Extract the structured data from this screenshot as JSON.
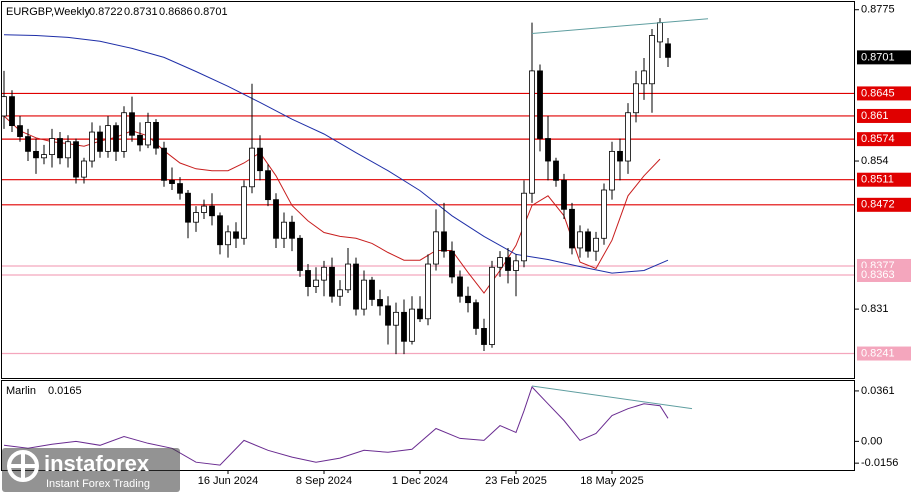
{
  "chart_data": {
    "type": "candlestick",
    "title": "EURGBP,Weekly",
    "categories": [
      null,
      null,
      null,
      null,
      null,
      null,
      null,
      null,
      null,
      null,
      null,
      null,
      null,
      null,
      null,
      null,
      null,
      null,
      null,
      null,
      null,
      null,
      null,
      null,
      null,
      null,
      null,
      null,
      "16 Jun 2024",
      null,
      null,
      null,
      null,
      null,
      null,
      null,
      null,
      null,
      null,
      null,
      "8 Sep 2024",
      null,
      null,
      null,
      null,
      null,
      null,
      null,
      null,
      null,
      null,
      null,
      "1 Dec 2024",
      null,
      null,
      null,
      null,
      null,
      null,
      null,
      null,
      null,
      null,
      null,
      "23 Feb 2025",
      null,
      null,
      null,
      null,
      null,
      null,
      null,
      null,
      null,
      null,
      null,
      "18 May 2025",
      null,
      null,
      null,
      null,
      null,
      null,
      null
    ],
    "ohlc": [
      [
        0.861,
        0.868,
        0.859,
        0.864
      ],
      [
        0.864,
        0.865,
        0.8585,
        0.8595
      ],
      [
        0.8595,
        0.861,
        0.857,
        0.8578
      ],
      [
        0.8578,
        0.859,
        0.854,
        0.8555
      ],
      [
        0.8555,
        0.8575,
        0.852,
        0.8545
      ],
      [
        0.8545,
        0.8565,
        0.8535,
        0.855
      ],
      [
        0.855,
        0.859,
        0.853,
        0.8575
      ],
      [
        0.8575,
        0.8585,
        0.8535,
        0.8545
      ],
      [
        0.8545,
        0.858,
        0.853,
        0.857
      ],
      [
        0.857,
        0.8575,
        0.8505,
        0.8515
      ],
      [
        0.8515,
        0.8545,
        0.8505,
        0.854
      ],
      [
        0.854,
        0.86,
        0.853,
        0.8585
      ],
      [
        0.8585,
        0.8595,
        0.8545,
        0.8555
      ],
      [
        0.8555,
        0.861,
        0.8545,
        0.8595
      ],
      [
        0.8595,
        0.86,
        0.854,
        0.8555
      ],
      [
        0.8555,
        0.8625,
        0.8545,
        0.8615
      ],
      [
        0.8615,
        0.864,
        0.857,
        0.858
      ],
      [
        0.858,
        0.86,
        0.8555,
        0.8565
      ],
      [
        0.8565,
        0.8615,
        0.856,
        0.86
      ],
      [
        0.86,
        0.8605,
        0.855,
        0.856
      ],
      [
        0.856,
        0.857,
        0.85,
        0.851
      ],
      [
        0.851,
        0.853,
        0.8495,
        0.8505
      ],
      [
        0.8505,
        0.8515,
        0.848,
        0.849
      ],
      [
        0.849,
        0.8495,
        0.842,
        0.8445
      ],
      [
        0.8445,
        0.847,
        0.843,
        0.846
      ],
      [
        0.846,
        0.848,
        0.845,
        0.847
      ],
      [
        0.847,
        0.849,
        0.844,
        0.8455
      ],
      [
        0.8455,
        0.846,
        0.8395,
        0.841
      ],
      [
        0.841,
        0.844,
        0.839,
        0.843
      ],
      [
        0.843,
        0.8445,
        0.8405,
        0.842
      ],
      [
        0.842,
        0.851,
        0.841,
        0.85
      ],
      [
        0.85,
        0.866,
        0.849,
        0.856
      ],
      [
        0.856,
        0.858,
        0.851,
        0.8525
      ],
      [
        0.8525,
        0.8535,
        0.847,
        0.848
      ],
      [
        0.848,
        0.849,
        0.8405,
        0.842
      ],
      [
        0.842,
        0.846,
        0.8405,
        0.8445
      ],
      [
        0.8445,
        0.8455,
        0.84,
        0.842
      ],
      [
        0.842,
        0.8425,
        0.836,
        0.837
      ],
      [
        0.837,
        0.838,
        0.833,
        0.8345
      ],
      [
        0.8345,
        0.8375,
        0.8335,
        0.8355
      ],
      [
        0.8355,
        0.8385,
        0.833,
        0.8375
      ],
      [
        0.8375,
        0.839,
        0.832,
        0.833
      ],
      [
        0.833,
        0.8355,
        0.8315,
        0.834
      ],
      [
        0.834,
        0.8405,
        0.8335,
        0.838
      ],
      [
        0.838,
        0.839,
        0.83,
        0.831
      ],
      [
        0.831,
        0.837,
        0.83,
        0.8355
      ],
      [
        0.8355,
        0.836,
        0.8315,
        0.8325
      ],
      [
        0.8325,
        0.834,
        0.83,
        0.8315
      ],
      [
        0.8315,
        0.833,
        0.8255,
        0.8285
      ],
      [
        0.8285,
        0.832,
        0.824,
        0.8305
      ],
      [
        0.8305,
        0.8325,
        0.824,
        0.826
      ],
      [
        0.826,
        0.833,
        0.8255,
        0.831
      ],
      [
        0.831,
        0.833,
        0.829,
        0.8295
      ],
      [
        0.8295,
        0.8395,
        0.8285,
        0.838
      ],
      [
        0.838,
        0.8465,
        0.837,
        0.843
      ],
      [
        0.843,
        0.8475,
        0.839,
        0.84
      ],
      [
        0.84,
        0.8415,
        0.835,
        0.836
      ],
      [
        0.836,
        0.837,
        0.832,
        0.833
      ],
      [
        0.833,
        0.8345,
        0.8305,
        0.832
      ],
      [
        0.832,
        0.8325,
        0.827,
        0.828
      ],
      [
        0.828,
        0.8295,
        0.8245,
        0.8255
      ],
      [
        0.8255,
        0.8385,
        0.825,
        0.8375
      ],
      [
        0.8375,
        0.84,
        0.836,
        0.839
      ],
      [
        0.839,
        0.8405,
        0.835,
        0.837
      ],
      [
        0.837,
        0.8395,
        0.833,
        0.8385
      ],
      [
        0.8385,
        0.851,
        0.8375,
        0.849
      ],
      [
        0.849,
        0.8755,
        0.8475,
        0.868
      ],
      [
        0.868,
        0.869,
        0.8555,
        0.8575
      ],
      [
        0.8575,
        0.861,
        0.851,
        0.854
      ],
      [
        0.854,
        0.8545,
        0.85,
        0.851
      ],
      [
        0.851,
        0.852,
        0.845,
        0.8465
      ],
      [
        0.8465,
        0.8475,
        0.8395,
        0.8405
      ],
      [
        0.8405,
        0.844,
        0.839,
        0.843
      ],
      [
        0.843,
        0.8435,
        0.839,
        0.84
      ],
      [
        0.84,
        0.843,
        0.8385,
        0.842
      ],
      [
        0.842,
        0.8505,
        0.841,
        0.8495
      ],
      [
        0.8495,
        0.857,
        0.848,
        0.8555
      ],
      [
        0.8555,
        0.8575,
        0.851,
        0.854
      ],
      [
        0.854,
        0.863,
        0.852,
        0.8615
      ],
      [
        0.8615,
        0.868,
        0.86,
        0.866
      ],
      [
        0.866,
        0.87,
        0.8635,
        0.868
      ],
      [
        0.866,
        0.8745,
        0.8615,
        0.8735
      ],
      [
        0.8725,
        0.8762,
        0.87,
        0.8755
      ],
      [
        0.8722,
        0.8731,
        0.8686,
        0.8701
      ]
    ],
    "ylim": [
      0.8203,
      0.8787
    ],
    "yticks": [
      0.8775,
      0.854,
      0.831
    ],
    "series": [
      {
        "color": "#c81e1e",
        "x": [
          0,
          2,
          4,
          6,
          8,
          10,
          12,
          14,
          16,
          18,
          20,
          22,
          24,
          26,
          28,
          30,
          32,
          34,
          36,
          38,
          40,
          42,
          44,
          46,
          48,
          50,
          52,
          54,
          56,
          58,
          60,
          62,
          64,
          66,
          68,
          70,
          72,
          74,
          76,
          78,
          80,
          82
        ],
        "values": [
          0.861,
          0.8587,
          0.8576,
          0.857,
          0.8567,
          0.8563,
          0.8571,
          0.8577,
          0.8587,
          0.8579,
          0.8556,
          0.8537,
          0.8528,
          0.8525,
          0.8525,
          0.8537,
          0.8553,
          0.8517,
          0.8471,
          0.8447,
          0.8429,
          0.8423,
          0.842,
          0.8412,
          0.8398,
          0.8386,
          0.8386,
          0.8401,
          0.8401,
          0.8367,
          0.8335,
          0.837,
          0.8409,
          0.8471,
          0.8486,
          0.8455,
          0.8383,
          0.8373,
          0.8417,
          0.8486,
          0.8517,
          0.8543
        ]
      },
      {
        "color": "#1f2fa8",
        "x": [
          0,
          4,
          8,
          12,
          16,
          20,
          24,
          28,
          32,
          36,
          40,
          44,
          48,
          52,
          56,
          60,
          64,
          68,
          72,
          76,
          80,
          83
        ],
        "values": [
          0.8736,
          0.8735,
          0.8732,
          0.8726,
          0.8715,
          0.8701,
          0.8679,
          0.8656,
          0.8631,
          0.8605,
          0.8582,
          0.8553,
          0.8525,
          0.8494,
          0.8455,
          0.8423,
          0.8395,
          0.8387,
          0.8376,
          0.8366,
          0.837,
          0.8386
        ]
      }
    ],
    "levels": [
      {
        "value": 0.8645,
        "color": "#e00000"
      },
      {
        "value": 0.861,
        "color": "#e00000"
      },
      {
        "value": 0.8574,
        "color": "#e00000"
      },
      {
        "value": 0.8511,
        "color": "#e00000"
      },
      {
        "value": 0.8472,
        "color": "#e00000"
      },
      {
        "value": 0.8377,
        "color": "#f4a6bd"
      },
      {
        "value": 0.8363,
        "color": "#f4a6bd"
      },
      {
        "value": 0.8241,
        "color": "#f4a6bd"
      }
    ],
    "trendline": {
      "color": "#5f9ea0",
      "x": [
        66,
        88
      ],
      "values": [
        0.8738,
        0.8761
      ]
    },
    "indicator": {
      "type": "line",
      "title": "Marlin",
      "current": 0.0165,
      "color": "#6a2c91",
      "x": [
        0,
        3,
        6,
        9,
        12,
        15,
        18,
        21,
        24,
        27,
        30,
        33,
        36,
        39,
        42,
        45,
        48,
        51,
        54,
        57,
        60,
        62,
        64,
        65,
        66,
        68,
        70,
        72,
        74,
        76,
        78,
        80,
        82,
        83
      ],
      "values": [
        -0.0028,
        -0.005,
        -0.0021,
        0.0,
        -0.0028,
        0.0035,
        -0.0014,
        -0.005,
        -0.0149,
        -0.017,
        0.0007,
        -0.0064,
        -0.0113,
        -0.0149,
        -0.012,
        -0.0064,
        -0.0078,
        -0.0057,
        0.0092,
        0.0021,
        0.0007,
        0.0113,
        0.0064,
        0.0219,
        0.0389,
        0.0269,
        0.0149,
        0.0007,
        0.0057,
        0.0184,
        0.0234,
        0.0269,
        0.0255,
        0.0165
      ],
      "ylim": [
        -0.0205,
        0.0432
      ],
      "yticks": [
        0.0361,
        {
          "value": 0,
          "label": "0.00"
        },
        -0.0156
      ],
      "trendline": {
        "color": "#5f9ea0",
        "x": [
          66,
          86
        ],
        "values": [
          0.0396,
          0.0234
        ]
      }
    }
  },
  "watermark": {
    "brand": "instaforex",
    "tagline": "Instant Forex Trading"
  }
}
